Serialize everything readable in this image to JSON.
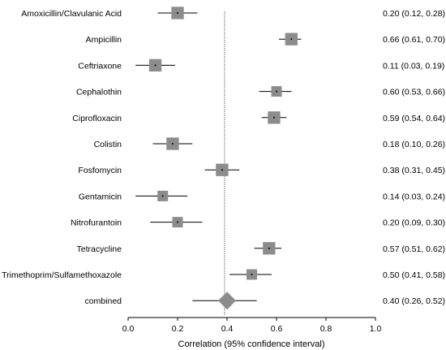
{
  "chart_data": {
    "type": "forest",
    "xlabel": "Correlation (95% confidence interval)",
    "xlim": [
      0.0,
      1.0
    ],
    "x_ticks": [
      "0.0",
      "0.2",
      "0.4",
      "0.6",
      "0.8",
      "1.0"
    ],
    "reference_line": 0.39,
    "box_color": "#8c8c8c",
    "rows": [
      {
        "label": "Amoxicillin/Clavulanic Acid",
        "estimate": 0.2,
        "lower": 0.12,
        "upper": 0.28,
        "ci_text": "0.20 (0.12, 0.28)",
        "weight": 0.85
      },
      {
        "label": "Ampicillin",
        "estimate": 0.66,
        "lower": 0.61,
        "upper": 0.7,
        "ci_text": "0.66 (0.61, 0.70)",
        "weight": 0.85
      },
      {
        "label": "Ceftriaxone",
        "estimate": 0.11,
        "lower": 0.03,
        "upper": 0.19,
        "ci_text": "0.11 (0.03, 0.19)",
        "weight": 0.85
      },
      {
        "label": "Cephalothin",
        "estimate": 0.6,
        "lower": 0.53,
        "upper": 0.66,
        "ci_text": "0.60 (0.53, 0.66)",
        "weight": 0.72
      },
      {
        "label": "Ciprofloxacin",
        "estimate": 0.59,
        "lower": 0.54,
        "upper": 0.64,
        "ci_text": "0.59 (0.54, 0.64)",
        "weight": 0.85
      },
      {
        "label": "Colistin",
        "estimate": 0.18,
        "lower": 0.1,
        "upper": 0.26,
        "ci_text": "0.18 (0.10, 0.26)",
        "weight": 0.85
      },
      {
        "label": "Fosfomycin",
        "estimate": 0.38,
        "lower": 0.31,
        "upper": 0.45,
        "ci_text": "0.38 (0.31, 0.45)",
        "weight": 0.85
      },
      {
        "label": "Gentamicin",
        "estimate": 0.14,
        "lower": 0.03,
        "upper": 0.24,
        "ci_text": "0.14 (0.03, 0.24)",
        "weight": 0.72
      },
      {
        "label": "Nitrofurantoin",
        "estimate": 0.2,
        "lower": 0.09,
        "upper": 0.3,
        "ci_text": "0.20 (0.09, 0.30)",
        "weight": 0.72
      },
      {
        "label": "Tetracycline",
        "estimate": 0.57,
        "lower": 0.51,
        "upper": 0.62,
        "ci_text": "0.57 (0.51, 0.62)",
        "weight": 0.85
      },
      {
        "label": "Trimethoprim/Sulfamethoxazole",
        "estimate": 0.5,
        "lower": 0.41,
        "upper": 0.58,
        "ci_text": "0.50 (0.41, 0.58)",
        "weight": 0.72
      }
    ],
    "combined": {
      "label": "combined",
      "estimate": 0.4,
      "lower": 0.26,
      "upper": 0.52,
      "ci_text": "0.40 (0.26, 0.52)"
    }
  }
}
